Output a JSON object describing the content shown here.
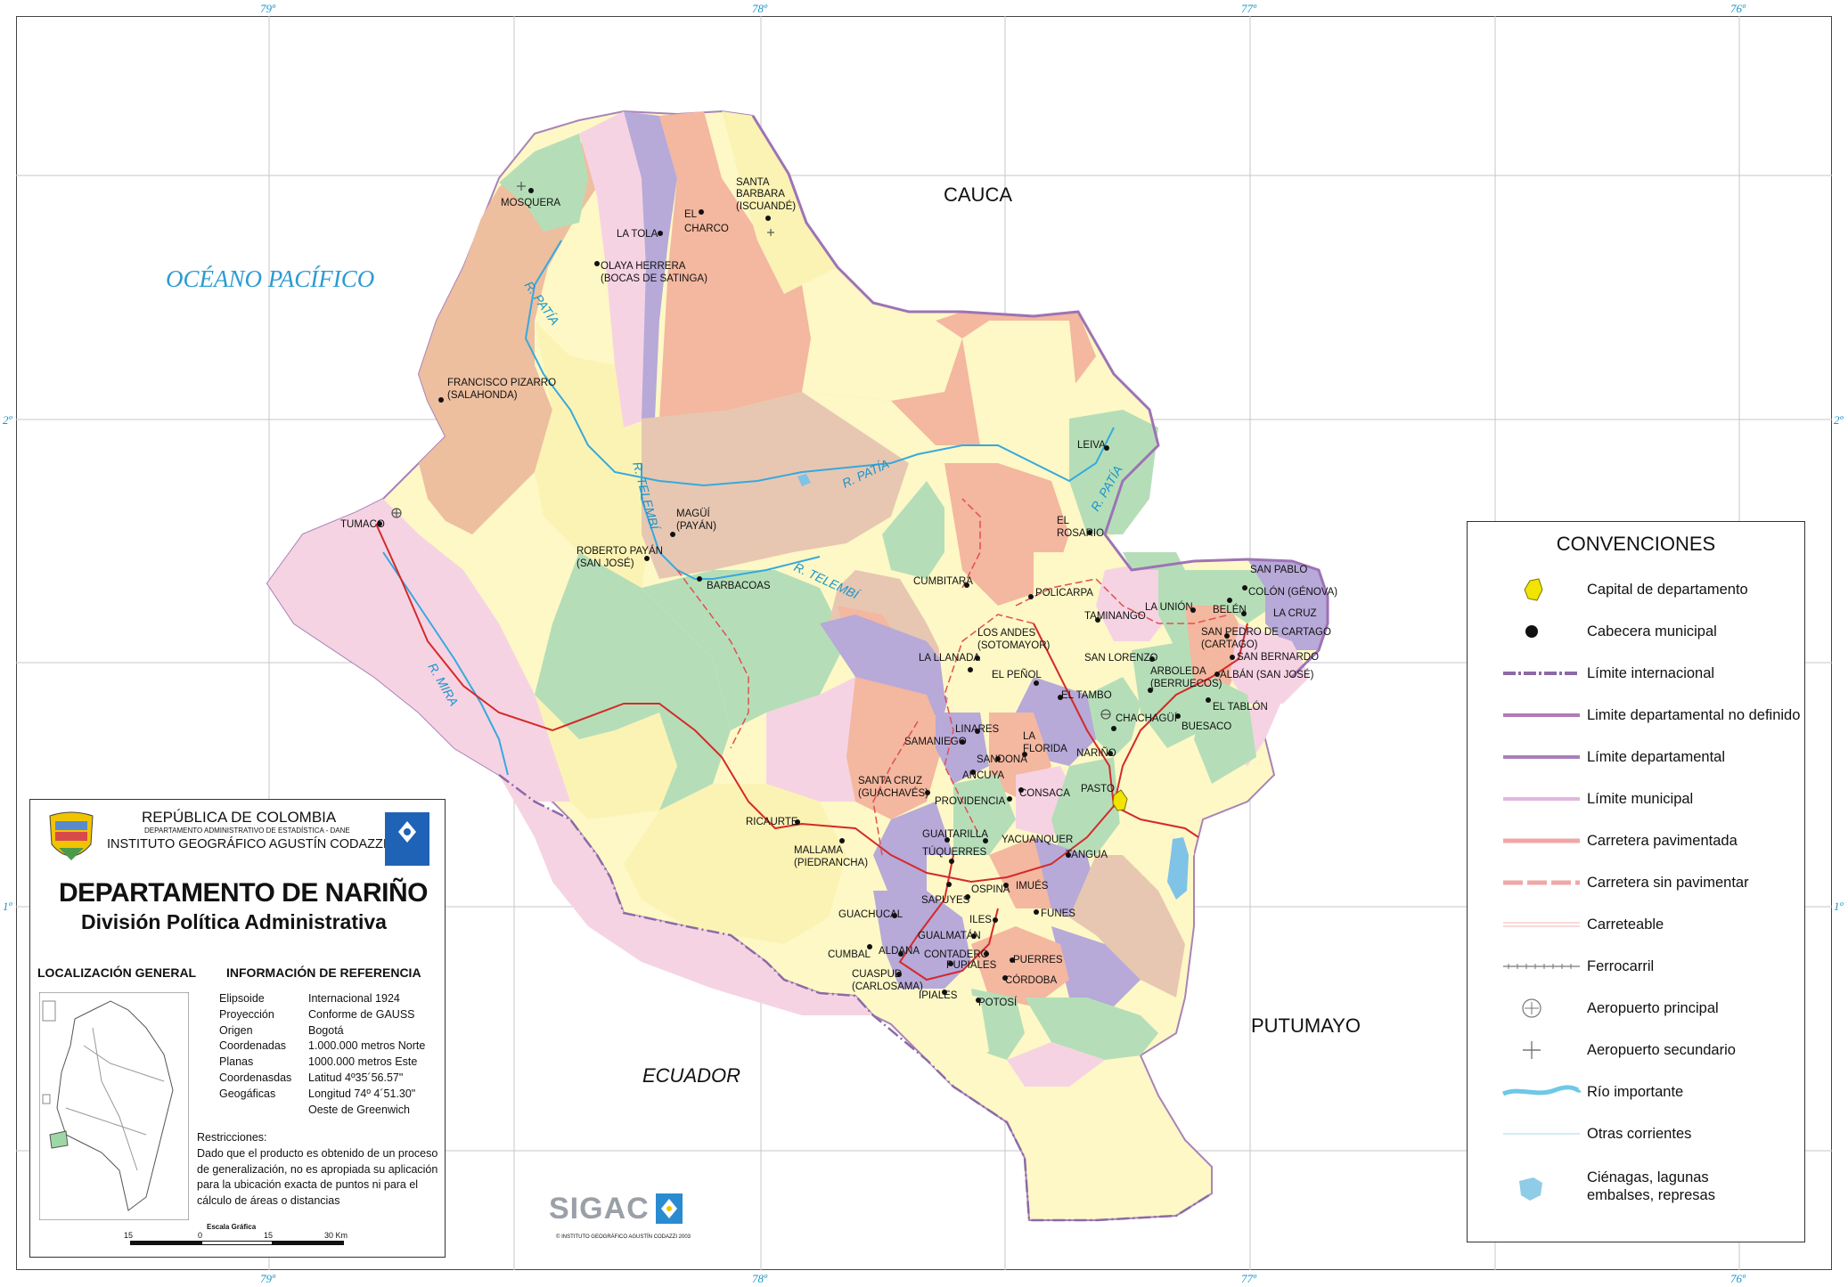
{
  "coordinates": {
    "lon_labels": [
      "79º",
      "78º",
      "77º",
      "76º"
    ],
    "lat_labels": [
      "2º",
      "1º"
    ]
  },
  "labels": {
    "ocean": "OCÉANO PACÍFICO",
    "cauca": "CAUCA",
    "putumayo": "PUTUMAYO",
    "ecuador": "ECUADOR"
  },
  "rivers": {
    "patia_1": "R. PATÍA",
    "patia_2": "R. PATÍA",
    "patia_3": "R. PATÍA",
    "telembi_1": "R. TELEMBÍ",
    "telembi_2": "R. TELEMBÍ",
    "mira": "R. MIRA"
  },
  "towns": {
    "mosquera": "MOSQUERA",
    "la_tola": "LA TOLA",
    "el_charco_1": "EL",
    "el_charco_2": "CHARCO",
    "santa_barbara_1": "SANTA",
    "santa_barbara_2": "BARBARA",
    "santa_barbara_3": "(ISCUANDÉ)",
    "olaya_1": "OLAYA HERRERA",
    "olaya_2": "(BOCAS DE SATINGA)",
    "pizarro_1": "FRANCISCO PIZARRO",
    "pizarro_2": "(SALAHONDA)",
    "tumaco": "TUMACO",
    "magui_1": "MAGÜÍ",
    "magui_2": "(PAYÁN)",
    "roberto_1": "ROBERTO PAYÁN",
    "roberto_2": "(SAN JOSÉ)",
    "barbacoas": "BARBACOAS",
    "leiva": "LEIVA",
    "el_rosario_1": "EL",
    "el_rosario_2": "ROSARIO",
    "cumbitara": "CUMBITARA",
    "policarpa": "POLICARPA",
    "los_andes_1": "LOS ANDES",
    "los_andes_2": "(SOTOMAYOR)",
    "la_llanada": "LA LLANADA",
    "el_penol": "EL PEÑOL",
    "taminango": "TAMINANGO",
    "san_lorenzo": "SAN LORENZO",
    "la_union": "LA UNIÓN",
    "san_pablo": "SAN PABLO",
    "colon": "COLÓN (GÉNOVA)",
    "belen": "BELÉN",
    "la_cruz": "LA CRUZ",
    "san_pedro_1": "SAN PEDRO DE CARTAGO",
    "san_pedro_2": "(CARTAGO)",
    "san_bernardo": "SAN BERNARDO",
    "arboleda_1": "ARBOLEDA",
    "arboleda_2": "(BERRUECOS)",
    "alban": "ALBÁN (SAN JOSÉ)",
    "el_tablon": "EL TABLÓN",
    "el_tambo": "EL TAMBO",
    "chachagui": "CHACHAGÜÍ",
    "buesaco": "BUESACO",
    "linares": "LINARES",
    "samaniego": "SAMANIEGO",
    "la_florida_1": "LA",
    "la_florida_2": "FLORIDA",
    "narino": "NARIÑO",
    "sandona": "SANDONÁ",
    "ancuya": "ANCUYA",
    "pasto": "PASTO",
    "santa_cruz_1": "SANTA CRUZ",
    "santa_cruz_2": "(GUACHAVÉS)",
    "consaca": "CONSACA",
    "providencia": "PROVIDENCIA",
    "ricaurte": "RICAURTE",
    "guaitarilla": "GUAITARILLA",
    "yacuanquer": "YACUANQUER",
    "tuquerres": "TÚQUERRES",
    "tangua": "TANGUA",
    "mallama_1": "MALLAMA",
    "mallama_2": "(PIEDRANCHA)",
    "ospina": "OSPINA",
    "imues": "IMUÉS",
    "sapuyes": "SAPUYES",
    "guachucal": "GUACHUCAL",
    "iles": "ILES",
    "funes": "FUNES",
    "gualmatan": "GUALMATÁN",
    "cumbal": "CUMBAL",
    "aldana": "ALDANA",
    "contadero": "CONTADERO",
    "puerres": "PUERRES",
    "pupiales": "PUPIALES",
    "cuaspud_1": "CUASPUD",
    "cuaspud_2": "(CARLOSAMA)",
    "cordoba": "CÓRDOBA",
    "ipiales": "IPIALES",
    "potosi": "POTOSÍ"
  },
  "legend": {
    "title": "CONVENCIONES",
    "items": [
      {
        "label": "Capital de departamento",
        "symbol": "capital-polygon"
      },
      {
        "label": "Cabecera municipal",
        "symbol": "dot"
      },
      {
        "label": "Límite internacional",
        "symbol": "international-line"
      },
      {
        "label": "Limite departamental no definido",
        "symbol": "undefined-boundary-line"
      },
      {
        "label": "Límite departamental",
        "symbol": "departmental-line"
      },
      {
        "label": "Límite municipal",
        "symbol": "municipal-line"
      },
      {
        "label": "Carretera pavimentada",
        "symbol": "paved-road-line"
      },
      {
        "label": "Carretera sin pavimentar",
        "symbol": "unpaved-road-line"
      },
      {
        "label": "Carreteable",
        "symbol": "track-line"
      },
      {
        "label": "Ferrocarril",
        "symbol": "railway-line"
      },
      {
        "label": "Aeropuerto principal",
        "symbol": "main-airport-icon"
      },
      {
        "label": "Aeropuerto secundario",
        "symbol": "secondary-airport-icon"
      },
      {
        "label": "Río importante",
        "symbol": "major-river-line"
      },
      {
        "label": "Otras corrientes",
        "symbol": "stream-line"
      },
      {
        "label": "Ciénagas, lagunas",
        "label2": "embalses, represas",
        "symbol": "lake-shape"
      }
    ],
    "colors": {
      "capital": "#f0e400",
      "international": "#8b6aa6",
      "departmental": "#b27ab8",
      "municipal": "#e0b7df",
      "paved_road": "#f0a7a7",
      "unpaved_road": "#f0a7a7",
      "track": "#f3b3b3",
      "river": "#6ec8e6",
      "lake": "#8fcce8"
    }
  },
  "info_box": {
    "republic": "REPÚBLICA DE COLOMBIA",
    "dane": "DEPARTAMENTO ADMINISTRATIVO DE ESTADÍSTICA - DANE",
    "igac": "INSTITUTO GEOGRÁFICO AGUSTÍN CODAZZI",
    "title": "DEPARTAMENTO DE NARIÑO",
    "subtitle": "División Política Administrativa",
    "loc_heading": "LOCALIZACIÓN GENERAL",
    "ref_heading": "INFORMACIÓN DE REFERENCIA",
    "reference": [
      {
        "key": "Elipsoide",
        "value": "Internacional 1924"
      },
      {
        "key": "Proyección",
        "value": "Conforme de GAUSS"
      },
      {
        "key": "Origen",
        "value": "Bogotá"
      },
      {
        "key": "Coordenadas",
        "value": "1.000.000 metros Norte"
      },
      {
        "key": "Planas",
        "value": "1000.000 metros Este"
      },
      {
        "key": "Coordenasdas",
        "value": "Latitud 4º35´56.57\""
      },
      {
        "key": "Geogáficas",
        "value": "Longitud 74º 4´51.30\""
      },
      {
        "key": "",
        "value": "Oeste de Greenwich"
      }
    ],
    "restrictions_heading": "Restricciones:",
    "restrictions": [
      "Dado que el producto es obtenido de un proceso",
      "de generalización, no es apropiada su aplicación",
      "para la ubicación exacta de puntos ni para el",
      "cálculo de áreas o distancias"
    ],
    "scale_title": "Escala Gráfica",
    "scale_ticks": [
      "15",
      "0",
      "15",
      "30 Km"
    ]
  },
  "footer": {
    "sigac": "SIGAC",
    "copyright": "© INSTITUTO GEOGRÁFICO AGUSTÍN CODAZZI 2003"
  }
}
